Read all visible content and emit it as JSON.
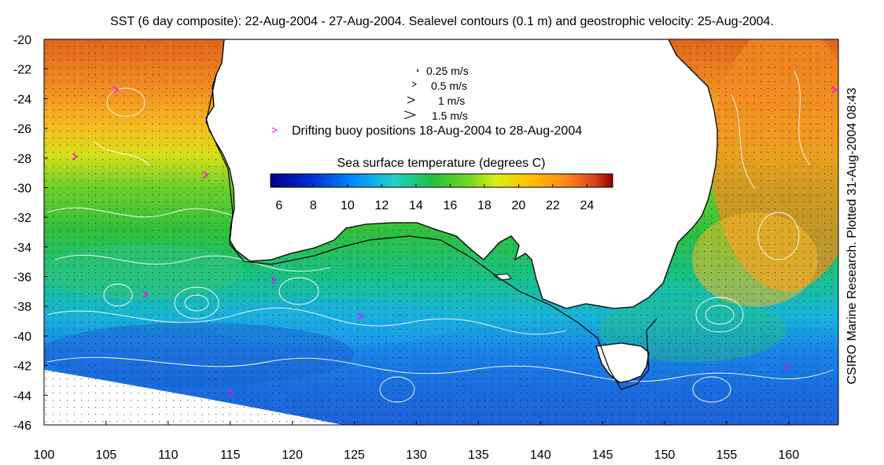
{
  "title": "SST (6 day composite): 22-Aug-2004 - 27-Aug-2004. Sealevel contours (0.1 m) and geostrophic velocity: 25-Aug-2004.",
  "credit": "CSIRO Marine Research. Plotted 31-Aug-2004 08:43",
  "legend": {
    "vectors": [
      "0.25 m/s",
      "0.5 m/s",
      "1 m/s",
      "1.5 m/s"
    ],
    "buoy_marker": ">",
    "buoy_label": "Drifting buoy positions 18-Aug-2004 to 28-Aug-2004"
  },
  "colorbar": {
    "title": "Sea surface temperature (degrees C)",
    "ticks": [
      "6",
      "8",
      "10",
      "12",
      "14",
      "16",
      "18",
      "20",
      "22",
      "24"
    ],
    "range": [
      5.5,
      25.5
    ]
  },
  "axes": {
    "x_ticks": [
      "100",
      "105",
      "110",
      "115",
      "120",
      "125",
      "130",
      "135",
      "140",
      "145",
      "150",
      "155",
      "160"
    ],
    "y_ticks": [
      "-20",
      "-22",
      "-24",
      "-26",
      "-28",
      "-30",
      "-32",
      "-34",
      "-36",
      "-38",
      "-40",
      "-42",
      "-44",
      "-46"
    ],
    "lon_range": [
      100,
      164
    ],
    "lat_range": [
      -46,
      -20
    ]
  },
  "colors": {
    "land": "#ffffff",
    "coastline": "#000000",
    "contour": "#ffffff",
    "buoy": "#ff00ff"
  }
}
